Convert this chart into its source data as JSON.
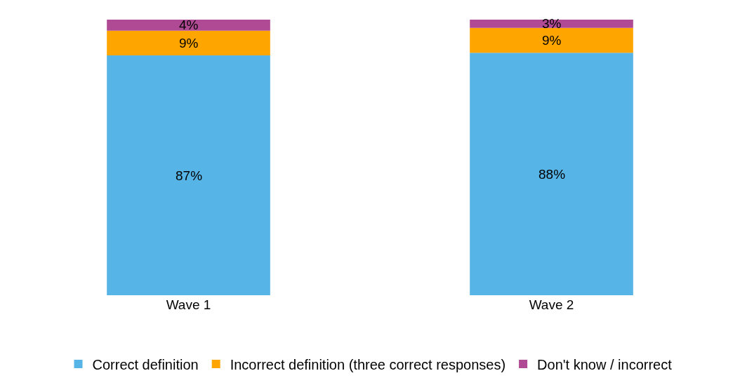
{
  "chart_data": {
    "type": "bar",
    "stacked": true,
    "legend": "bottom",
    "categories": [
      "Wave 1",
      "Wave 2"
    ],
    "series": [
      {
        "name": "Correct definition",
        "color": "#56b4e6",
        "values": [
          87,
          88
        ],
        "value_labels": [
          "87%",
          "88%"
        ]
      },
      {
        "name": "Incorrect definition (three correct responses)",
        "color": "#ffa500",
        "values": [
          9,
          9
        ],
        "value_labels": [
          "9%",
          "9%"
        ]
      },
      {
        "name": "Don't know / incorrect",
        "color": "#b04a94",
        "values": [
          4,
          3
        ],
        "value_labels": [
          "4%",
          "3%"
        ]
      }
    ]
  }
}
